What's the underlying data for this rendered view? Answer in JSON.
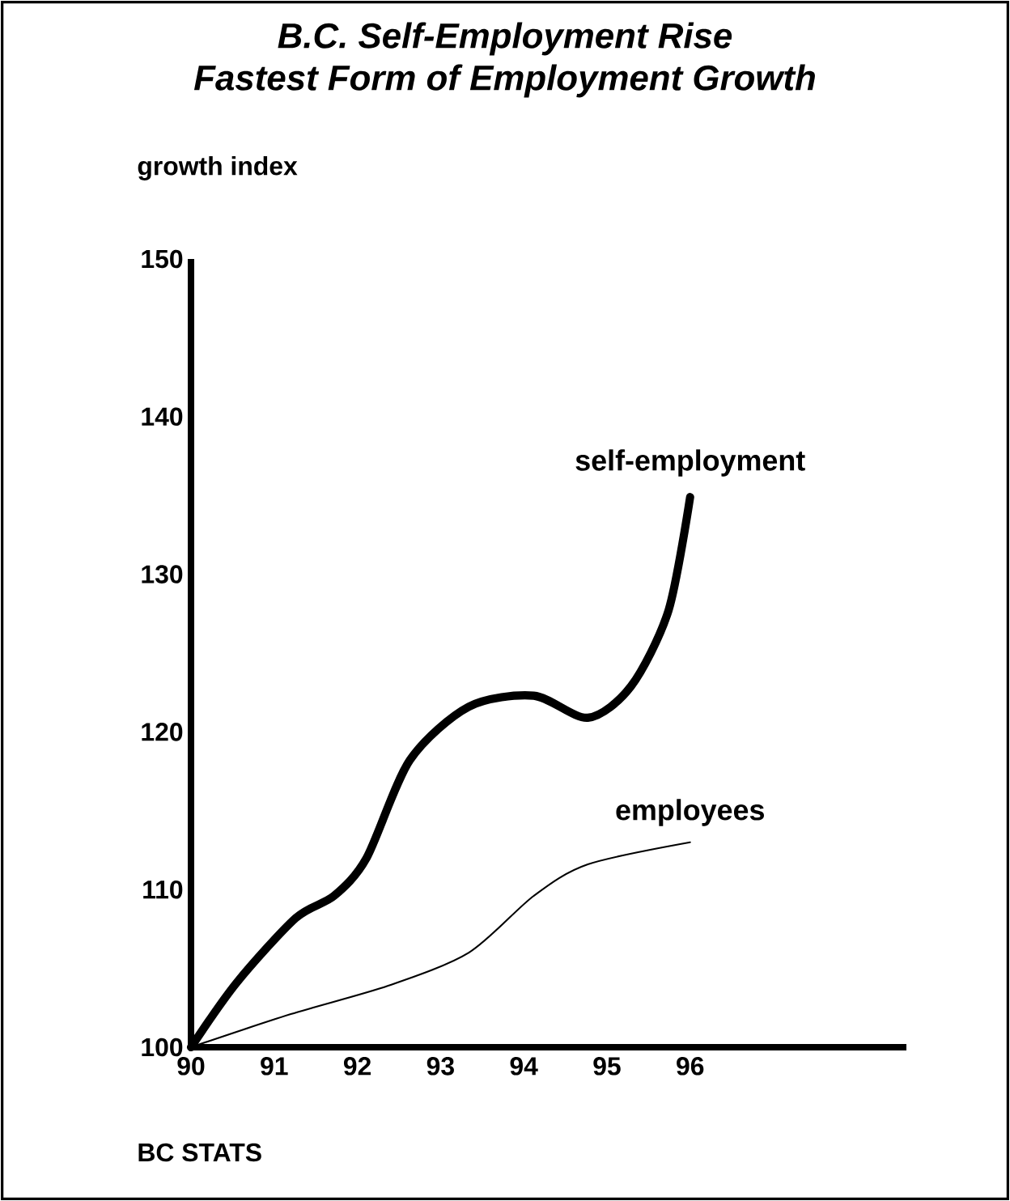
{
  "chart_data": {
    "type": "line",
    "title": "B.C. Self-Employment Rise",
    "subtitle": "Fastest Form of Employment Growth",
    "ylabel": "growth index",
    "xlim": [
      90,
      98.6
    ],
    "xticks": [
      90,
      91,
      92,
      93,
      94,
      95,
      96
    ],
    "ylim": [
      100,
      150
    ],
    "yticks": [
      100,
      110,
      120,
      130,
      140,
      150
    ],
    "grid": false,
    "marker": "none",
    "line_style": "solid",
    "series": [
      {
        "name": "self-employment",
        "color": "#000000",
        "x": [
          90,
          90.55,
          91.26,
          91.72,
          92.11,
          92.63,
          93.34,
          94.12,
          94.77,
          95.29,
          95.74,
          96
        ],
        "values": [
          100,
          104.1,
          108.2,
          109.6,
          112.0,
          118.2,
          121.6,
          122.3,
          120.9,
          122.9,
          127.7,
          134.9
        ]
      },
      {
        "name": "employees",
        "color": "#000000",
        "x": [
          90,
          91.2,
          92.37,
          93.34,
          94.12,
          94.77,
          96
        ],
        "values": [
          100,
          102.1,
          103.9,
          106.0,
          109.6,
          111.6,
          113.0
        ]
      }
    ],
    "annotations": [
      "BC STATS"
    ]
  }
}
